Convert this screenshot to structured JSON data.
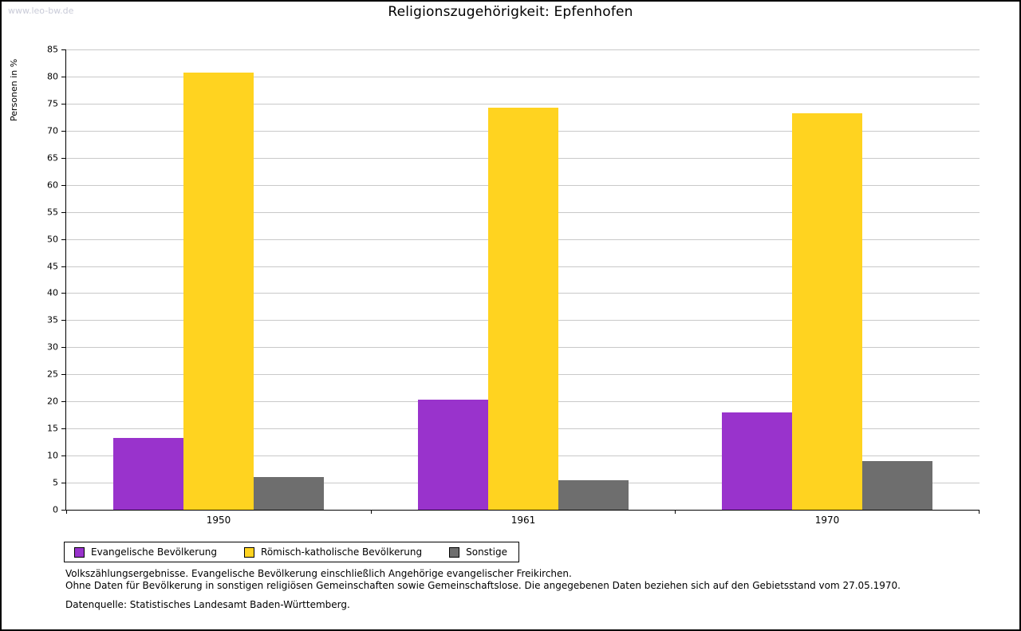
{
  "watermark": "www.leo-bw.de",
  "chart_data": {
    "type": "bar",
    "title": "Religionszugehörigkeit: Epfenhofen",
    "ylabel": "Personen in %",
    "categories": [
      "1950",
      "1961",
      "1970"
    ],
    "series": [
      {
        "name": "Evangelische Bevölkerung",
        "color": "#9933CC",
        "values": [
          13.3,
          20.4,
          18.0
        ]
      },
      {
        "name": "Römisch-katholische Bevölkerung",
        "color": "#FFD320",
        "values": [
          80.8,
          74.2,
          73.2
        ]
      },
      {
        "name": "Sonstige",
        "color": "#6E6E6E",
        "values": [
          6.0,
          5.5,
          9.0
        ]
      }
    ],
    "ylim": [
      0,
      85
    ],
    "ytick_step": 5,
    "grid": true,
    "legend_position": "bottom-left"
  },
  "footer": {
    "line1": "Volkszählungsergebnisse. Evangelische Bevölkerung einschließlich Angehörige evangelischer Freikirchen.",
    "line2": "Ohne Daten für Bevölkerung in sonstigen religiösen Gemeinschaften sowie Gemeinschaftslose. Die angegebenen Daten beziehen sich auf den Gebietsstand vom 27.05.1970.",
    "line3": "Datenquelle: Statistisches Landesamt Baden-Württemberg."
  }
}
